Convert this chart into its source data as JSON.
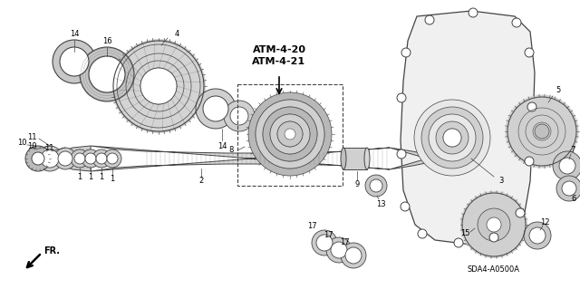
{
  "bg_color": "#ffffff",
  "line_color": "#444444",
  "atm_label1": "ATM-4-20",
  "atm_label2": "ATM-4-21",
  "diagram_code": "SDA4-A0500A",
  "fr_label": "FR.",
  "figsize": [
    6.4,
    3.19
  ],
  "dpi": 100
}
